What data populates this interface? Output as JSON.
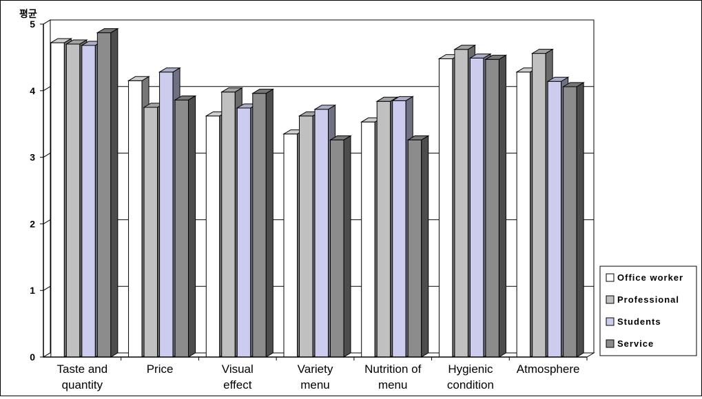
{
  "chart_data": {
    "type": "bar",
    "ylabel": "평균",
    "ylim": [
      0,
      5
    ],
    "yticks": [
      0,
      1,
      2,
      3,
      4,
      5
    ],
    "grid": true,
    "legend_position": "right",
    "categories": [
      [
        "Taste and",
        "quantity"
      ],
      [
        "Price"
      ],
      [
        "Visual",
        "effect"
      ],
      [
        "Variety",
        "menu"
      ],
      [
        "Nutrition of",
        "menu"
      ],
      [
        "Hygienic",
        "condition"
      ],
      [
        "Atmosphere"
      ]
    ],
    "series": [
      {
        "name": "Office worker",
        "color": "#ffffff",
        "values": [
          4.72,
          4.15,
          3.62,
          3.35,
          3.53,
          4.48,
          4.28
        ]
      },
      {
        "name": "Professional",
        "color": "#c0c0c0",
        "values": [
          4.7,
          3.75,
          3.98,
          3.62,
          3.84,
          4.62,
          4.56
        ]
      },
      {
        "name": "Students",
        "color": "#ccccee",
        "values": [
          4.68,
          4.28,
          3.74,
          3.72,
          3.85,
          4.49,
          4.14
        ]
      },
      {
        "name": "Service",
        "color": "#8c8c8c",
        "values": [
          4.87,
          3.86,
          3.96,
          3.26,
          3.26,
          4.47,
          4.06
        ]
      }
    ]
  }
}
